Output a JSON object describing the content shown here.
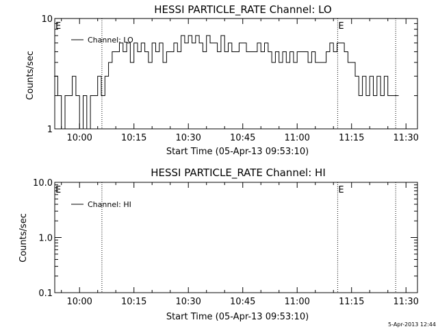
{
  "chart_data": [
    {
      "type": "line",
      "title": "HESSI PARTICLE_RATE Channel: LO",
      "xlabel": "Start Time (05-Apr-13 09:53:10)",
      "ylabel": "Counts/sec",
      "x_tick_labels": [
        "10:00",
        "10:15",
        "10:30",
        "10:45",
        "11:00",
        "11:15",
        "11:30"
      ],
      "y_tick_labels": [
        "1",
        "10"
      ],
      "yscale": "log",
      "ylim": [
        1,
        10
      ],
      "xlim": [
        "09:53:10",
        "11:33:10"
      ],
      "event_marker_label": "E",
      "event_lines": [
        "10:06:10",
        "11:11:10",
        "11:27:10"
      ],
      "legend": "top-left",
      "series": [
        {
          "name": "Channel: LO",
          "x": [
            "09:53",
            "09:54",
            "09:55",
            "09:56",
            "09:57",
            "09:58",
            "09:59",
            "10:00",
            "10:01",
            "10:02",
            "10:03",
            "10:04",
            "10:05",
            "10:06",
            "10:07",
            "10:08",
            "10:09",
            "10:10",
            "10:11",
            "10:12",
            "10:13",
            "10:14",
            "10:15",
            "10:16",
            "10:17",
            "10:18",
            "10:19",
            "10:20",
            "10:21",
            "10:22",
            "10:23",
            "10:24",
            "10:25",
            "10:26",
            "10:27",
            "10:28",
            "10:29",
            "10:30",
            "10:31",
            "10:32",
            "10:33",
            "10:34",
            "10:35",
            "10:36",
            "10:37",
            "10:38",
            "10:39",
            "10:40",
            "10:41",
            "10:42",
            "10:43",
            "10:44",
            "10:45",
            "10:46",
            "10:47",
            "10:48",
            "10:49",
            "10:50",
            "10:51",
            "10:52",
            "10:53",
            "10:54",
            "10:55",
            "10:56",
            "10:57",
            "10:58",
            "10:59",
            "11:00",
            "11:01",
            "11:02",
            "11:03",
            "11:04",
            "11:05",
            "11:06",
            "11:07",
            "11:08",
            "11:09",
            "11:10",
            "11:11",
            "11:12",
            "11:13",
            "11:14",
            "11:15",
            "11:16",
            "11:17",
            "11:18",
            "11:19",
            "11:20",
            "11:21",
            "11:22",
            "11:23",
            "11:24",
            "11:25",
            "11:26",
            "11:27"
          ],
          "values": [
            3,
            2,
            1,
            2,
            2,
            3,
            2,
            1,
            2,
            1,
            2,
            2,
            3,
            2,
            3,
            4,
            5,
            5,
            6,
            5,
            6,
            4,
            6,
            5,
            6,
            5,
            4,
            6,
            5,
            6,
            4,
            5,
            5,
            6,
            5,
            7,
            6,
            7,
            6,
            7,
            6,
            5,
            7,
            6,
            6,
            5,
            7,
            5,
            6,
            5,
            5,
            6,
            6,
            5,
            5,
            5,
            6,
            5,
            6,
            5,
            4,
            5,
            4,
            5,
            4,
            5,
            4,
            5,
            5,
            5,
            4,
            5,
            4,
            4,
            4,
            5,
            6,
            5,
            6,
            6,
            5,
            4,
            4,
            3,
            2,
            3,
            2,
            3,
            2,
            3,
            2,
            3,
            2,
            2,
            2
          ]
        }
      ]
    },
    {
      "type": "line",
      "title": "HESSI PARTICLE_RATE Channel: HI",
      "xlabel": "Start Time (05-Apr-13 09:53:10)",
      "ylabel": "Counts/sec",
      "x_tick_labels": [
        "10:00",
        "10:15",
        "10:30",
        "10:45",
        "11:00",
        "11:15",
        "11:30"
      ],
      "y_tick_labels": [
        "0.1",
        "1.0",
        "10.0"
      ],
      "yscale": "log",
      "ylim": [
        0.1,
        10
      ],
      "xlim": [
        "09:53:10",
        "11:33:10"
      ],
      "event_marker_label": "E",
      "event_lines": [
        "10:06:10",
        "11:11:10",
        "11:27:10"
      ],
      "legend": "top-left",
      "series": [
        {
          "name": "Channel: HI",
          "x": [],
          "values": []
        }
      ]
    }
  ],
  "footer": {
    "timestamp": "5-Apr-2013 12:44"
  }
}
